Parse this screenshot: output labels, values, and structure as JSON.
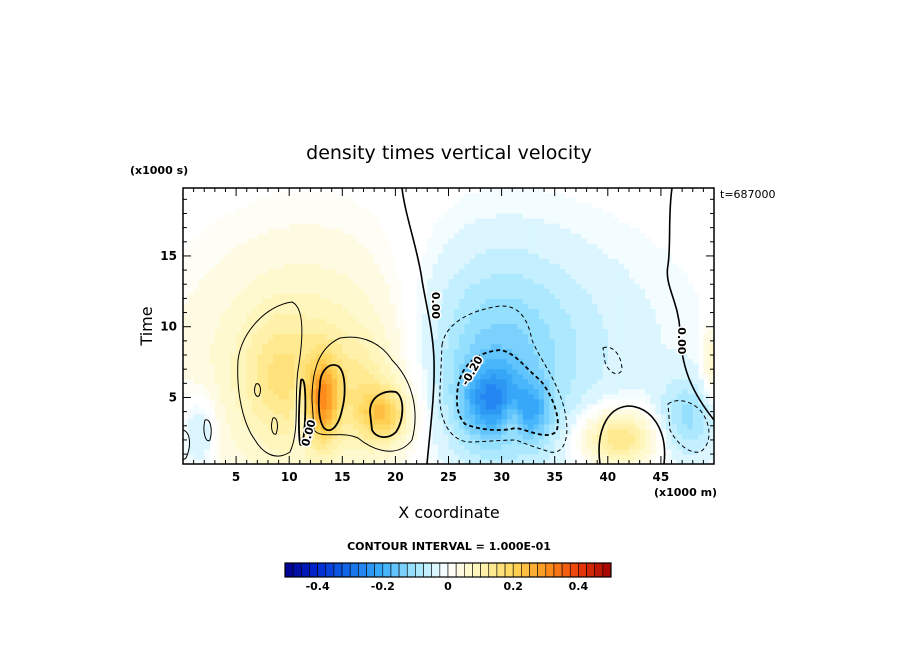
{
  "chart_data": {
    "type": "heatmap",
    "title": "density times vertical velocity",
    "xlabel": "X coordinate",
    "ylabel": "Time",
    "x_unit": "(x1000 m)",
    "y_unit": "(x1000 s)",
    "time_label": "t=687000",
    "xlim": [
      0,
      50
    ],
    "ylim": [
      0.3,
      19.8
    ],
    "x_ticks": [
      5,
      10,
      15,
      20,
      25,
      30,
      35,
      40,
      45
    ],
    "y_ticks": [
      5,
      10,
      15
    ],
    "contour_interval_text": "CONTOUR INTERVAL = 1.000E-01",
    "contour_labels": [
      {
        "text": "0.00",
        "x": 23.8,
        "y": 11.5,
        "rotate": 90
      },
      {
        "text": "0.00",
        "x": 47.0,
        "y": 9.0,
        "rotate": 90
      },
      {
        "text": "-0.20",
        "x": 27.2,
        "y": 6.9,
        "rotate": -60
      },
      {
        "text": "0.00",
        "x": 11.8,
        "y": 2.5,
        "rotate": -75
      }
    ],
    "colorbar": {
      "min": -0.5,
      "max": 0.5,
      "step": 0.025,
      "ticks": [
        -0.4,
        -0.2,
        0,
        0.2,
        0.4
      ],
      "tick_labels": [
        "-0.4",
        "-0.2",
        "0",
        "0.2",
        "0.4"
      ]
    },
    "field_blobs": [
      {
        "x": 13.0,
        "y": 7.0,
        "sx": 8.0,
        "sy": 6.0,
        "a": 0.12
      },
      {
        "x": 9.0,
        "y": 6.5,
        "sx": 2.2,
        "sy": 2.8,
        "a": 0.06
      },
      {
        "x": 13.2,
        "y": 4.8,
        "sx": 1.0,
        "sy": 2.0,
        "a": 0.2
      },
      {
        "x": 18.8,
        "y": 3.8,
        "sx": 1.7,
        "sy": 1.4,
        "a": 0.17
      },
      {
        "x": 16.5,
        "y": 6.5,
        "sx": 2.5,
        "sy": 2.0,
        "a": 0.04
      },
      {
        "x": 10.9,
        "y": 4.0,
        "sx": 0.3,
        "sy": 1.8,
        "a": -0.09
      },
      {
        "x": 29.0,
        "y": 6.5,
        "sx": 5.0,
        "sy": 5.5,
        "a": -0.1
      },
      {
        "x": 31.5,
        "y": 9.0,
        "sx": 10.0,
        "sy": 5.5,
        "a": -0.06
      },
      {
        "x": 29.0,
        "y": 4.8,
        "sx": 2.0,
        "sy": 1.8,
        "a": -0.14
      },
      {
        "x": 33.0,
        "y": 4.0,
        "sx": 1.2,
        "sy": 1.4,
        "a": -0.1
      },
      {
        "x": 31.0,
        "y": 3.5,
        "sx": 0.7,
        "sy": 1.0,
        "a": 0.06
      },
      {
        "x": 41.0,
        "y": 2.2,
        "sx": 2.5,
        "sy": 1.4,
        "a": 0.17
      },
      {
        "x": 47.5,
        "y": 3.5,
        "sx": 2.0,
        "sy": 2.0,
        "a": -0.1
      },
      {
        "x": 1.5,
        "y": 2.5,
        "sx": 1.2,
        "sy": 2.0,
        "a": -0.08
      },
      {
        "x": 49.7,
        "y": 7.5,
        "sx": 0.6,
        "sy": 2.0,
        "a": 0.08
      }
    ]
  }
}
